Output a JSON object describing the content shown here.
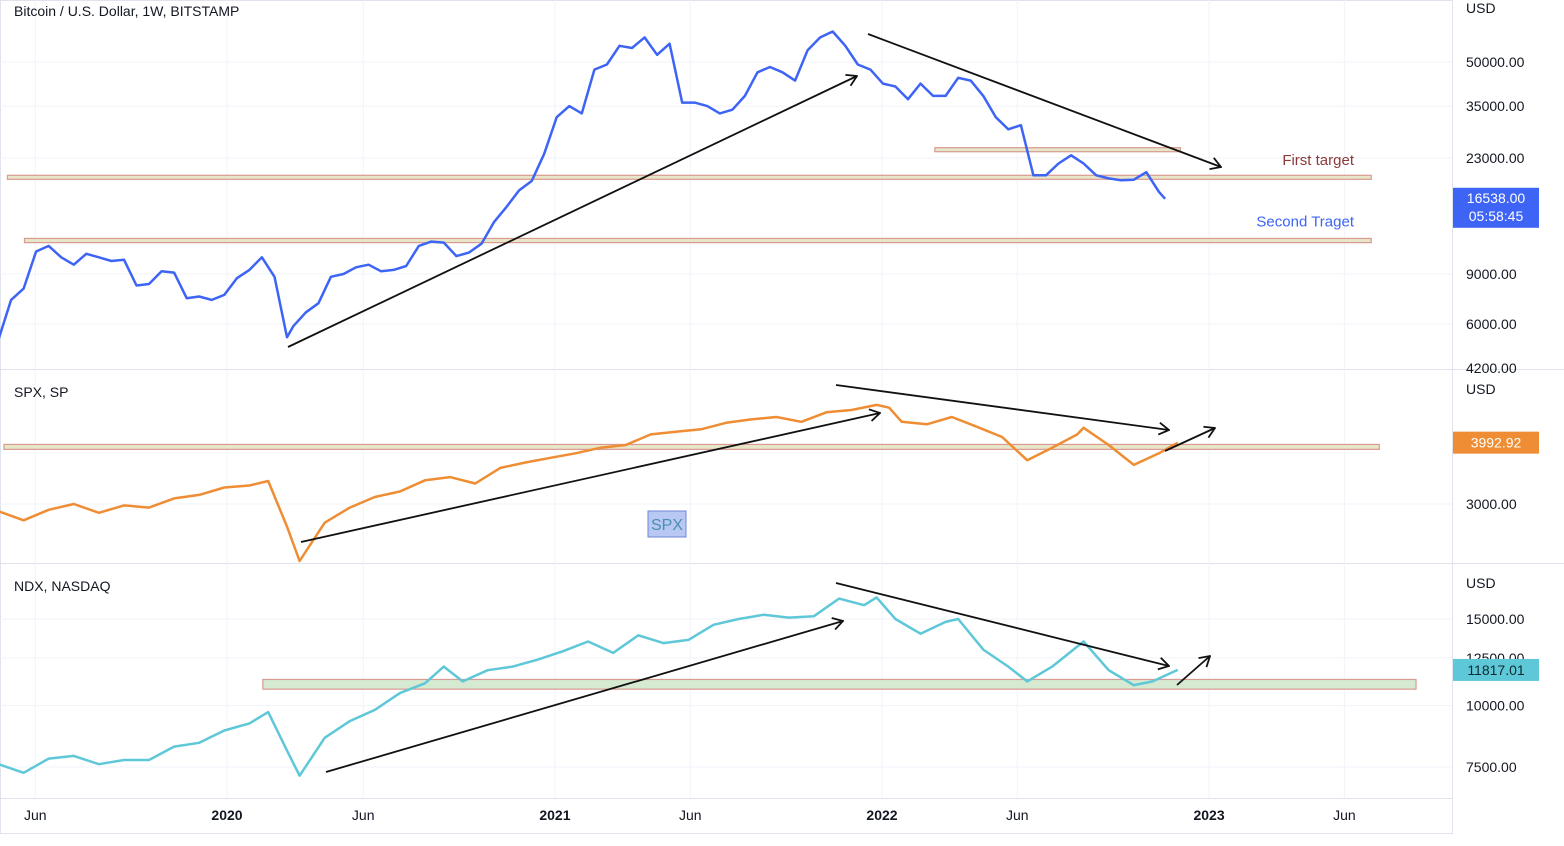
{
  "colors": {
    "btc": "#3d64f5",
    "spx": "#ee8d33",
    "ndx": "#5ec8d8",
    "zone_fill": "#e8e6c8",
    "zone_border": "#d99a92",
    "ndx_zone_fill": "#d6ead2",
    "arrow": "#111111",
    "first_target": "#8b3a3a",
    "second_target": "#3d64f5"
  },
  "time_axis": {
    "labels": [
      {
        "text": "Jun",
        "bold": false
      },
      {
        "text": "2020",
        "bold": true
      },
      {
        "text": "Jun",
        "bold": false
      },
      {
        "text": "2021",
        "bold": true
      },
      {
        "text": "Jun",
        "bold": false
      },
      {
        "text": "2022",
        "bold": true
      },
      {
        "text": "Jun",
        "bold": false
      },
      {
        "text": "2023",
        "bold": true
      },
      {
        "text": "Jun",
        "bold": false
      }
    ]
  },
  "chart_data": [
    {
      "type": "line",
      "title": "Bitcoin / U.S. Dollar, 1W, BITSTAMP",
      "currency": "USD",
      "scale": "log",
      "y_ticks": [
        "50000.00",
        "35000.00",
        "23000.00",
        "9000.00",
        "6000.00",
        "4200.00"
      ],
      "y_tick_values": [
        50000,
        35000,
        23000,
        9000,
        6000,
        4200
      ],
      "last_price": "16538.00",
      "countdown": "05:58:45",
      "annotations": [
        {
          "text": "First target",
          "price": 19700
        },
        {
          "text": "Second Traget",
          "price": 11800
        }
      ],
      "zones": [
        {
          "from": "2019-05-01",
          "to": "2023-07-01",
          "low": 19400,
          "high": 20000
        },
        {
          "from": "2019-05-20",
          "to": "2023-07-01",
          "low": 11600,
          "high": 12000
        },
        {
          "from": "2022-03-01",
          "to": "2022-11-30",
          "low": 24200,
          "high": 25000
        }
      ],
      "series": [
        {
          "x": [
            "2019-04-21",
            "2019-05-05",
            "2019-05-19",
            "2019-06-02",
            "2019-06-16",
            "2019-06-30",
            "2019-07-14",
            "2019-07-28",
            "2019-08-11",
            "2019-08-25",
            "2019-09-08",
            "2019-09-22",
            "2019-10-06",
            "2019-10-20",
            "2019-11-03",
            "2019-11-17",
            "2019-12-01",
            "2019-12-15",
            "2019-12-29",
            "2020-01-12",
            "2020-01-26",
            "2020-02-09",
            "2020-02-23",
            "2020-03-08",
            "2020-03-15",
            "2020-03-29",
            "2020-04-12",
            "2020-04-26",
            "2020-05-10",
            "2020-05-24",
            "2020-06-07",
            "2020-06-21",
            "2020-07-05",
            "2020-07-19",
            "2020-08-02",
            "2020-08-16",
            "2020-08-30",
            "2020-09-13",
            "2020-09-27",
            "2020-10-11",
            "2020-10-25",
            "2020-11-08",
            "2020-11-22",
            "2020-12-06",
            "2020-12-20",
            "2021-01-03",
            "2021-01-17",
            "2021-01-31",
            "2021-02-14",
            "2021-02-28",
            "2021-03-14",
            "2021-03-28",
            "2021-04-11",
            "2021-04-25",
            "2021-05-09",
            "2021-05-23",
            "2021-06-06",
            "2021-06-20",
            "2021-07-04",
            "2021-07-18",
            "2021-08-01",
            "2021-08-15",
            "2021-08-29",
            "2021-09-12",
            "2021-09-26",
            "2021-10-10",
            "2021-10-24",
            "2021-11-07",
            "2021-11-21",
            "2021-12-05",
            "2021-12-19",
            "2022-01-02",
            "2022-01-16",
            "2022-01-30",
            "2022-02-13",
            "2022-02-27",
            "2022-03-13",
            "2022-03-27",
            "2022-04-10",
            "2022-04-24",
            "2022-05-08",
            "2022-05-22",
            "2022-06-05",
            "2022-06-19",
            "2022-07-03",
            "2022-07-17",
            "2022-07-31",
            "2022-08-14",
            "2022-08-28",
            "2022-09-11",
            "2022-09-25",
            "2022-10-09",
            "2022-10-23",
            "2022-11-06",
            "2022-11-13"
          ],
          "values": [
            5300,
            7300,
            8000,
            10800,
            11300,
            10300,
            9700,
            10600,
            10300,
            10000,
            10100,
            8200,
            8300,
            9200,
            9100,
            7400,
            7500,
            7300,
            7600,
            8700,
            9300,
            10300,
            8800,
            5400,
            5900,
            6600,
            7100,
            8800,
            9000,
            9500,
            9700,
            9200,
            9300,
            9600,
            11300,
            11700,
            11600,
            10400,
            10700,
            11500,
            13700,
            15500,
            17700,
            19100,
            23800,
            32000,
            35000,
            33000,
            47000,
            49000,
            57000,
            56000,
            61000,
            53000,
            58000,
            36000,
            36000,
            35000,
            33000,
            34000,
            38000,
            46000,
            48000,
            46000,
            43000,
            55000,
            61000,
            64000,
            57000,
            49000,
            47000,
            42000,
            41000,
            37000,
            42000,
            38000,
            38000,
            44000,
            43000,
            38000,
            32000,
            29000,
            30000,
            20000,
            20000,
            22000,
            23500,
            22000,
            20000,
            19500,
            19200,
            19300,
            20500,
            17500,
            16538
          ]
        }
      ]
    },
    {
      "type": "line",
      "title": "SPX, SP",
      "currency": "USD",
      "scale": "log",
      "y_ticks": [
        "3000.00"
      ],
      "y_tick_values": [
        3000
      ],
      "last_price": "3992.92",
      "badge": "SPX",
      "zones": [
        {
          "from": "2019-04-21",
          "to": "2023-07-10",
          "low": 3870,
          "high": 3960
        }
      ],
      "series": [
        {
          "x": [
            "2019-04-21",
            "2019-05-19",
            "2019-06-16",
            "2019-07-14",
            "2019-08-11",
            "2019-09-08",
            "2019-10-06",
            "2019-11-03",
            "2019-12-01",
            "2019-12-29",
            "2020-01-26",
            "2020-02-16",
            "2020-03-08",
            "2020-03-22",
            "2020-04-19",
            "2020-05-17",
            "2020-06-14",
            "2020-07-12",
            "2020-08-09",
            "2020-09-06",
            "2020-10-04",
            "2020-11-01",
            "2020-11-29",
            "2020-12-27",
            "2021-01-24",
            "2021-02-21",
            "2021-03-21",
            "2021-04-18",
            "2021-05-16",
            "2021-06-13",
            "2021-07-11",
            "2021-08-08",
            "2021-09-05",
            "2021-10-03",
            "2021-10-31",
            "2021-11-28",
            "2021-12-26",
            "2022-01-09",
            "2022-01-23",
            "2022-02-20",
            "2022-03-20",
            "2022-04-17",
            "2022-05-15",
            "2022-06-12",
            "2022-07-10",
            "2022-08-07",
            "2022-08-14",
            "2022-09-11",
            "2022-10-09",
            "2022-11-06",
            "2022-11-27"
          ],
          "values": [
            2900,
            2780,
            2920,
            3000,
            2880,
            2980,
            2950,
            3080,
            3130,
            3240,
            3270,
            3340,
            2700,
            2300,
            2750,
            2950,
            3100,
            3180,
            3350,
            3400,
            3300,
            3550,
            3640,
            3720,
            3800,
            3900,
            3950,
            4150,
            4200,
            4250,
            4380,
            4450,
            4500,
            4400,
            4600,
            4650,
            4760,
            4700,
            4400,
            4350,
            4500,
            4300,
            4100,
            3680,
            3900,
            4150,
            4280,
            3950,
            3600,
            3800,
            3992.92
          ]
        }
      ]
    },
    {
      "type": "line",
      "title": "NDX, NASDAQ",
      "currency": "USD",
      "scale": "log",
      "y_ticks": [
        "15000.00",
        "12500.00",
        "10000.00",
        "7500.00"
      ],
      "y_tick_values": [
        15000,
        12500,
        10000,
        7500
      ],
      "last_price": "11817.01",
      "zones": [
        {
          "from": "2020-02-10",
          "to": "2023-08-20",
          "low": 10800,
          "high": 11300
        }
      ],
      "series": [
        {
          "x": [
            "2019-04-21",
            "2019-05-19",
            "2019-06-16",
            "2019-07-14",
            "2019-08-11",
            "2019-09-08",
            "2019-10-06",
            "2019-11-03",
            "2019-12-01",
            "2019-12-29",
            "2020-01-26",
            "2020-02-16",
            "2020-03-08",
            "2020-03-22",
            "2020-04-19",
            "2020-05-17",
            "2020-06-14",
            "2020-07-12",
            "2020-08-09",
            "2020-08-30",
            "2020-09-20",
            "2020-10-18",
            "2020-11-15",
            "2020-12-13",
            "2021-01-10",
            "2021-02-07",
            "2021-03-07",
            "2021-04-04",
            "2021-05-02",
            "2021-05-30",
            "2021-06-27",
            "2021-07-25",
            "2021-08-22",
            "2021-09-19",
            "2021-10-17",
            "2021-11-14",
            "2021-12-12",
            "2021-12-26",
            "2022-01-16",
            "2022-02-13",
            "2022-03-13",
            "2022-03-27",
            "2022-04-24",
            "2022-05-22",
            "2022-06-12",
            "2022-07-10",
            "2022-08-14",
            "2022-09-11",
            "2022-10-09",
            "2022-10-30",
            "2022-11-27"
          ],
          "values": [
            7600,
            7300,
            7800,
            7900,
            7600,
            7750,
            7750,
            8250,
            8400,
            8900,
            9200,
            9700,
            8100,
            7200,
            8600,
            9300,
            9800,
            10600,
            11100,
            12000,
            11200,
            11800,
            12000,
            12400,
            12900,
            13500,
            12800,
            13900,
            13400,
            13600,
            14600,
            15000,
            15300,
            15100,
            15200,
            16500,
            16000,
            16600,
            15000,
            14000,
            14800,
            15000,
            13000,
            12000,
            11200,
            12000,
            13500,
            11800,
            11000,
            11200,
            11817.01
          ]
        }
      ]
    }
  ]
}
